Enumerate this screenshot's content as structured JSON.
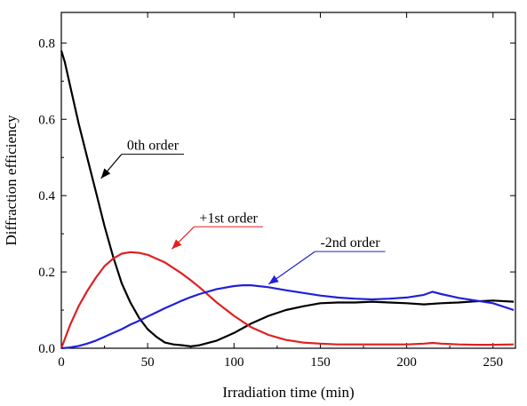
{
  "chart_data": {
    "type": "line",
    "title": "",
    "xlabel": "Irradiation time (min)",
    "ylabel": "Diffraction efficiency",
    "xlim": [
      0,
      263
    ],
    "ylim": [
      0,
      0.88
    ],
    "xticks": [
      0,
      50,
      100,
      150,
      200,
      250
    ],
    "xtick_labels": [
      "0",
      "50",
      "100",
      "150",
      "200",
      "250"
    ],
    "yticks": [
      0.0,
      0.2,
      0.4,
      0.6,
      0.8
    ],
    "ytick_labels": [
      "0.0",
      "0.2",
      "0.4",
      "0.6",
      "0.8"
    ],
    "grid": false,
    "legend": "none",
    "series": [
      {
        "color": "#000000",
        "x": [
          0,
          2,
          5,
          10,
          15,
          20,
          25,
          30,
          35,
          40,
          45,
          50,
          55,
          60,
          65,
          70,
          75,
          80,
          90,
          100,
          110,
          120,
          130,
          140,
          150,
          160,
          170,
          180,
          190,
          200,
          210,
          220,
          230,
          240,
          250,
          262
        ],
        "y": [
          0.78,
          0.75,
          0.69,
          0.59,
          0.5,
          0.41,
          0.32,
          0.24,
          0.17,
          0.12,
          0.08,
          0.05,
          0.03,
          0.015,
          0.01,
          0.008,
          0.005,
          0.008,
          0.02,
          0.04,
          0.065,
          0.085,
          0.1,
          0.11,
          0.118,
          0.12,
          0.12,
          0.122,
          0.12,
          0.118,
          0.115,
          0.118,
          0.12,
          0.123,
          0.125,
          0.122
        ]
      },
      {
        "color": "#e02020",
        "x": [
          0,
          5,
          10,
          15,
          20,
          25,
          30,
          35,
          40,
          45,
          50,
          55,
          60,
          65,
          70,
          75,
          80,
          90,
          100,
          110,
          120,
          130,
          140,
          150,
          160,
          170,
          180,
          190,
          200,
          210,
          215,
          220,
          230,
          240,
          250,
          262
        ],
        "y": [
          0.0,
          0.06,
          0.11,
          0.15,
          0.185,
          0.215,
          0.235,
          0.248,
          0.252,
          0.25,
          0.245,
          0.235,
          0.225,
          0.21,
          0.195,
          0.178,
          0.16,
          0.12,
          0.085,
          0.055,
          0.035,
          0.022,
          0.015,
          0.012,
          0.01,
          0.01,
          0.01,
          0.01,
          0.01,
          0.012,
          0.014,
          0.012,
          0.01,
          0.009,
          0.009,
          0.01
        ]
      },
      {
        "color": "#2020d8",
        "x": [
          0,
          5,
          10,
          15,
          20,
          25,
          30,
          35,
          40,
          45,
          50,
          55,
          60,
          65,
          70,
          75,
          80,
          90,
          100,
          105,
          110,
          120,
          130,
          140,
          150,
          160,
          170,
          180,
          190,
          200,
          210,
          215,
          220,
          230,
          240,
          250,
          262
        ],
        "y": [
          0.0,
          0.002,
          0.006,
          0.012,
          0.02,
          0.03,
          0.04,
          0.05,
          0.062,
          0.072,
          0.083,
          0.094,
          0.105,
          0.115,
          0.125,
          0.134,
          0.142,
          0.155,
          0.163,
          0.165,
          0.165,
          0.16,
          0.152,
          0.145,
          0.138,
          0.133,
          0.13,
          0.128,
          0.13,
          0.133,
          0.14,
          0.148,
          0.142,
          0.132,
          0.125,
          0.118,
          0.1
        ]
      }
    ],
    "annotations": [
      {
        "text": "0th order",
        "x": 38,
        "y": 0.52,
        "color": "#000000",
        "arrow_to": [
          23,
          0.445
        ]
      },
      {
        "text": "+1st order",
        "x": 80,
        "y": 0.33,
        "color": "#e02020",
        "arrow_to": [
          64,
          0.26
        ]
      },
      {
        "text": "-2nd order",
        "x": 150,
        "y": 0.265,
        "color": "#2020d8",
        "arrow_to": [
          120,
          0.168
        ]
      }
    ]
  }
}
